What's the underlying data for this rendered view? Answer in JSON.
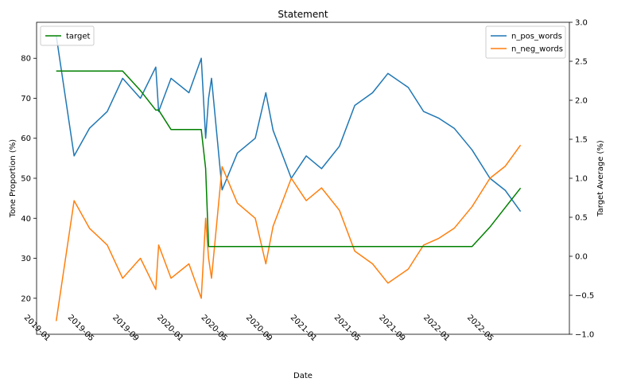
{
  "chart_data": {
    "type": "line",
    "title": "Statement",
    "xlabel": "Date",
    "ylabel": "Tone Proportion (%)",
    "y2label": "Target Average (%)",
    "x_tick_labels": [
      "2019-01",
      "2019-05",
      "2019-09",
      "2020-01",
      "2020-05",
      "2020-09",
      "2021-01",
      "2021-05",
      "2021-09",
      "2022-01",
      "2022-05"
    ],
    "y_ticks": [
      "20",
      "30",
      "40",
      "50",
      "60",
      "70",
      "80"
    ],
    "y2_ticks": [
      "−1.0",
      "−0.5",
      "0.0",
      "0.5",
      "1.0",
      "1.5",
      "2.0",
      "2.5",
      "3.0"
    ],
    "ylim": [
      11,
      89
    ],
    "y2lim": [
      -1.0,
      3.0
    ],
    "xlim": [
      "2018-12-07",
      "2022-12-08"
    ],
    "legend_left": [
      "target"
    ],
    "legend_right": [
      "n_pos_words",
      "n_neg_words"
    ],
    "colors": {
      "n_pos_words": "#1f77b4",
      "n_neg_words": "#ff7f0e",
      "target": "#008000"
    },
    "series": [
      {
        "name": "n_pos_words",
        "axis": "left",
        "points": [
          [
            "2019-01-30",
            85.7
          ],
          [
            "2019-03-20",
            55.6
          ],
          [
            "2019-05-01",
            62.5
          ],
          [
            "2019-06-19",
            66.7
          ],
          [
            "2019-07-31",
            75.0
          ],
          [
            "2019-09-18",
            70.0
          ],
          [
            "2019-10-30",
            77.8
          ],
          [
            "2019-11-07",
            66.7
          ],
          [
            "2019-12-11",
            75.0
          ],
          [
            "2020-01-29",
            71.4
          ],
          [
            "2020-03-03",
            80.0
          ],
          [
            "2020-03-15",
            60.0
          ],
          [
            "2020-03-23",
            70.0
          ],
          [
            "2020-03-31",
            75.0
          ],
          [
            "2020-04-29",
            47.1
          ],
          [
            "2020-06-10",
            56.3
          ],
          [
            "2020-07-29",
            60.0
          ],
          [
            "2020-08-27",
            71.4
          ],
          [
            "2020-09-16",
            62.0
          ],
          [
            "2020-11-05",
            50.0
          ],
          [
            "2020-12-16",
            55.6
          ],
          [
            "2021-01-27",
            52.4
          ],
          [
            "2021-03-17",
            58.0
          ],
          [
            "2021-04-28",
            68.2
          ],
          [
            "2021-06-16",
            71.4
          ],
          [
            "2021-07-28",
            76.2
          ],
          [
            "2021-09-22",
            72.7
          ],
          [
            "2021-11-03",
            66.7
          ],
          [
            "2021-12-15",
            65.0
          ],
          [
            "2022-01-26",
            62.5
          ],
          [
            "2022-03-16",
            57.1
          ],
          [
            "2022-05-04",
            50.0
          ],
          [
            "2022-06-15",
            47.0
          ],
          [
            "2022-07-27",
            41.7
          ]
        ]
      },
      {
        "name": "n_neg_words",
        "axis": "left",
        "points": [
          [
            "2019-01-30",
            14.3
          ],
          [
            "2019-03-20",
            44.4
          ],
          [
            "2019-05-01",
            37.5
          ],
          [
            "2019-06-19",
            33.3
          ],
          [
            "2019-07-31",
            25.0
          ],
          [
            "2019-09-18",
            30.0
          ],
          [
            "2019-10-30",
            22.2
          ],
          [
            "2019-11-07",
            33.3
          ],
          [
            "2019-12-11",
            25.0
          ],
          [
            "2020-01-29",
            28.6
          ],
          [
            "2020-03-03",
            20.0
          ],
          [
            "2020-03-15",
            40.0
          ],
          [
            "2020-03-23",
            30.0
          ],
          [
            "2020-03-31",
            25.0
          ],
          [
            "2020-04-29",
            52.9
          ],
          [
            "2020-06-10",
            43.8
          ],
          [
            "2020-07-29",
            40.0
          ],
          [
            "2020-08-27",
            28.6
          ],
          [
            "2020-09-16",
            38.0
          ],
          [
            "2020-11-05",
            50.0
          ],
          [
            "2020-12-16",
            44.4
          ],
          [
            "2021-01-27",
            47.6
          ],
          [
            "2021-03-17",
            42.0
          ],
          [
            "2021-04-28",
            31.8
          ],
          [
            "2021-06-16",
            28.6
          ],
          [
            "2021-07-28",
            23.8
          ],
          [
            "2021-09-22",
            27.3
          ],
          [
            "2021-11-03",
            33.3
          ],
          [
            "2021-12-15",
            35.0
          ],
          [
            "2022-01-26",
            37.5
          ],
          [
            "2022-03-16",
            42.9
          ],
          [
            "2022-05-04",
            50.0
          ],
          [
            "2022-06-15",
            53.0
          ],
          [
            "2022-07-27",
            58.3
          ]
        ]
      },
      {
        "name": "target",
        "axis": "right",
        "points": [
          [
            "2019-01-30",
            2.375
          ],
          [
            "2019-07-31",
            2.375
          ],
          [
            "2019-09-18",
            2.125
          ],
          [
            "2019-10-30",
            1.875
          ],
          [
            "2019-11-07",
            1.875
          ],
          [
            "2019-12-11",
            1.625
          ],
          [
            "2020-01-29",
            1.625
          ],
          [
            "2020-03-03",
            1.625
          ],
          [
            "2020-03-15",
            1.125
          ],
          [
            "2020-03-23",
            0.125
          ],
          [
            "2020-04-29",
            0.125
          ],
          [
            "2021-12-15",
            0.125
          ],
          [
            "2022-03-16",
            0.125
          ],
          [
            "2022-05-04",
            0.375
          ],
          [
            "2022-06-15",
            0.625
          ],
          [
            "2022-07-27",
            0.875
          ]
        ]
      }
    ]
  }
}
